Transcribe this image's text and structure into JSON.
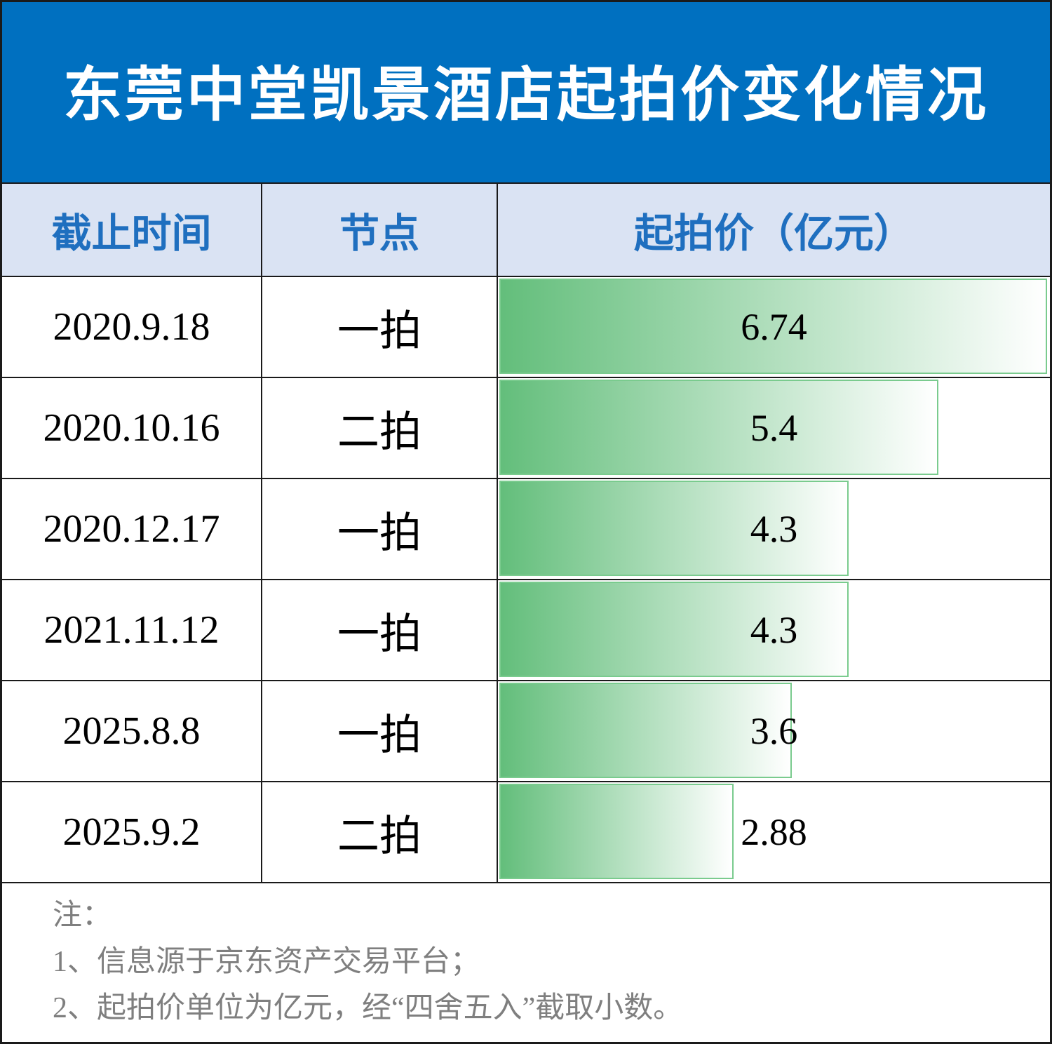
{
  "colors": {
    "banner_bg": "#0070C0",
    "title_text": "#FFFFFF",
    "header_bg": "#DAE3F3",
    "header_text": "#1F6FBF",
    "bar_fill": "#63BE7B",
    "bar_border": "#7ACB8E",
    "note_text": "#7F7F7F",
    "grid_line": "#1A1A1A"
  },
  "chart_data": {
    "type": "table",
    "title": "东莞中堂凯景酒店起拍价变化情况",
    "columns": [
      "截止时间",
      "节点",
      "起拍价（亿元）"
    ],
    "rows": [
      {
        "date": "2020.9.18",
        "node": "一拍",
        "price": 6.74
      },
      {
        "date": "2020.10.16",
        "node": "二拍",
        "price": 5.4
      },
      {
        "date": "2020.12.17",
        "node": "一拍",
        "price": 4.3
      },
      {
        "date": "2021.11.12",
        "node": "一拍",
        "price": 4.3
      },
      {
        "date": "2025.8.8",
        "node": "一拍",
        "price": 3.6
      },
      {
        "date": "2025.9.2",
        "node": "二拍",
        "price": 2.88
      }
    ]
  },
  "notes": {
    "heading": "注：",
    "items": [
      "1、信息源于京东资产交易平台；",
      "2、起拍价单位为亿元，经“四舍五入”截取小数。"
    ]
  }
}
